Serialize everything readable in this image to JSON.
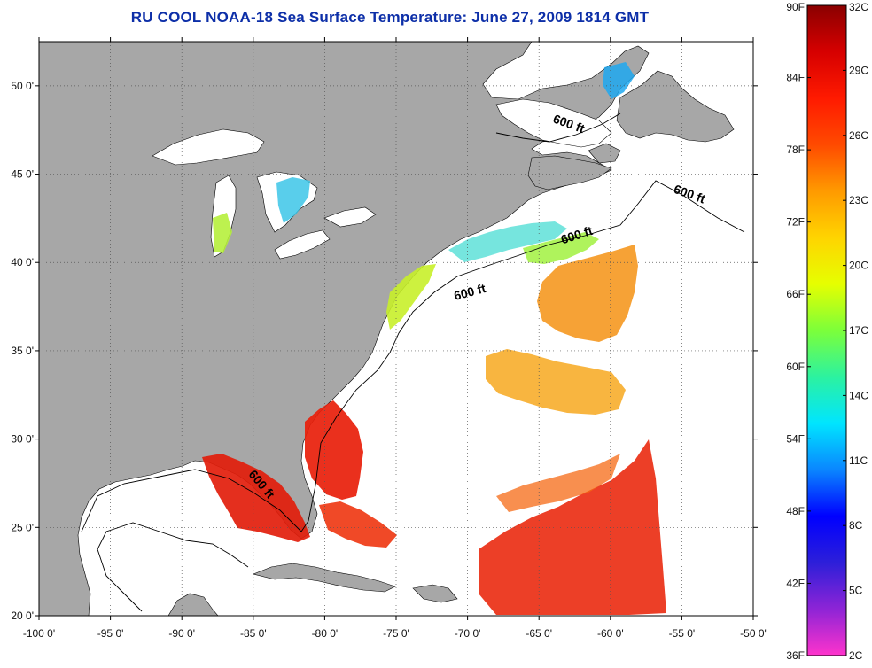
{
  "title": "RU COOL  NOAA-18  Sea Surface Temperature:  June 27, 2009 1814 GMT",
  "map": {
    "lon_range": [
      -100,
      -50
    ],
    "lat_range": [
      20,
      52.5
    ],
    "x_ticks": [
      {
        "value": -100,
        "label": "-100 0'"
      },
      {
        "value": -95,
        "label": "-95 0'"
      },
      {
        "value": -90,
        "label": "-90 0'"
      },
      {
        "value": -85,
        "label": "-85 0'"
      },
      {
        "value": -80,
        "label": "-80 0'"
      },
      {
        "value": -75,
        "label": "-75 0'"
      },
      {
        "value": -70,
        "label": "-70 0'"
      },
      {
        "value": -65,
        "label": "-65 0'"
      },
      {
        "value": -60,
        "label": "-60 0'"
      },
      {
        "value": -55,
        "label": "-55 0'"
      },
      {
        "value": -50,
        "label": "-50 0'"
      }
    ],
    "y_ticks": [
      {
        "value": 50,
        "label": "50 0'"
      },
      {
        "value": 45,
        "label": "45 0'"
      },
      {
        "value": 40,
        "label": "40 0'"
      },
      {
        "value": 35,
        "label": "35 0'"
      },
      {
        "value": 30,
        "label": "30 0'"
      },
      {
        "value": 25,
        "label": "25 0'"
      },
      {
        "value": 20,
        "label": "20 0'"
      }
    ],
    "contour_labels": [
      "600 ft",
      "600 ft",
      "600 ft",
      "600 ft",
      "600 ft"
    ],
    "colors": {
      "land": "#a7a7a7",
      "ocean": "#ffffff",
      "grid": "#555555"
    }
  },
  "colorbar": {
    "range_c": [
      2,
      32
    ],
    "range_f": [
      36,
      90
    ],
    "celsius_labels": [
      {
        "value": 32,
        "label": "32C"
      },
      {
        "value": 29,
        "label": "29C"
      },
      {
        "value": 26,
        "label": "26C"
      },
      {
        "value": 23,
        "label": "23C"
      },
      {
        "value": 20,
        "label": "20C"
      },
      {
        "value": 17,
        "label": "17C"
      },
      {
        "value": 14,
        "label": "14C"
      },
      {
        "value": 11,
        "label": "11C"
      },
      {
        "value": 8,
        "label": "8C"
      },
      {
        "value": 5,
        "label": "5C"
      },
      {
        "value": 2,
        "label": "2C"
      }
    ],
    "fahrenheit_labels": [
      {
        "value": 90,
        "label": "90F"
      },
      {
        "value": 84,
        "label": "84F"
      },
      {
        "value": 78,
        "label": "78F"
      },
      {
        "value": 72,
        "label": "72F"
      },
      {
        "value": 66,
        "label": "66F"
      },
      {
        "value": 60,
        "label": "60F"
      },
      {
        "value": 54,
        "label": "54F"
      },
      {
        "value": 48,
        "label": "48F"
      },
      {
        "value": 42,
        "label": "42F"
      },
      {
        "value": 36,
        "label": "36F"
      }
    ],
    "gradient_stops": [
      "#ff33cc",
      "#8e24d6",
      "#2d1fd9",
      "#0000ff",
      "#0a86ff",
      "#00e5ff",
      "#2cf2a0",
      "#7cff3a",
      "#e6ff00",
      "#ffd400",
      "#ff9a00",
      "#ff4a00",
      "#ff1a00",
      "#d60000",
      "#8a0000"
    ]
  }
}
